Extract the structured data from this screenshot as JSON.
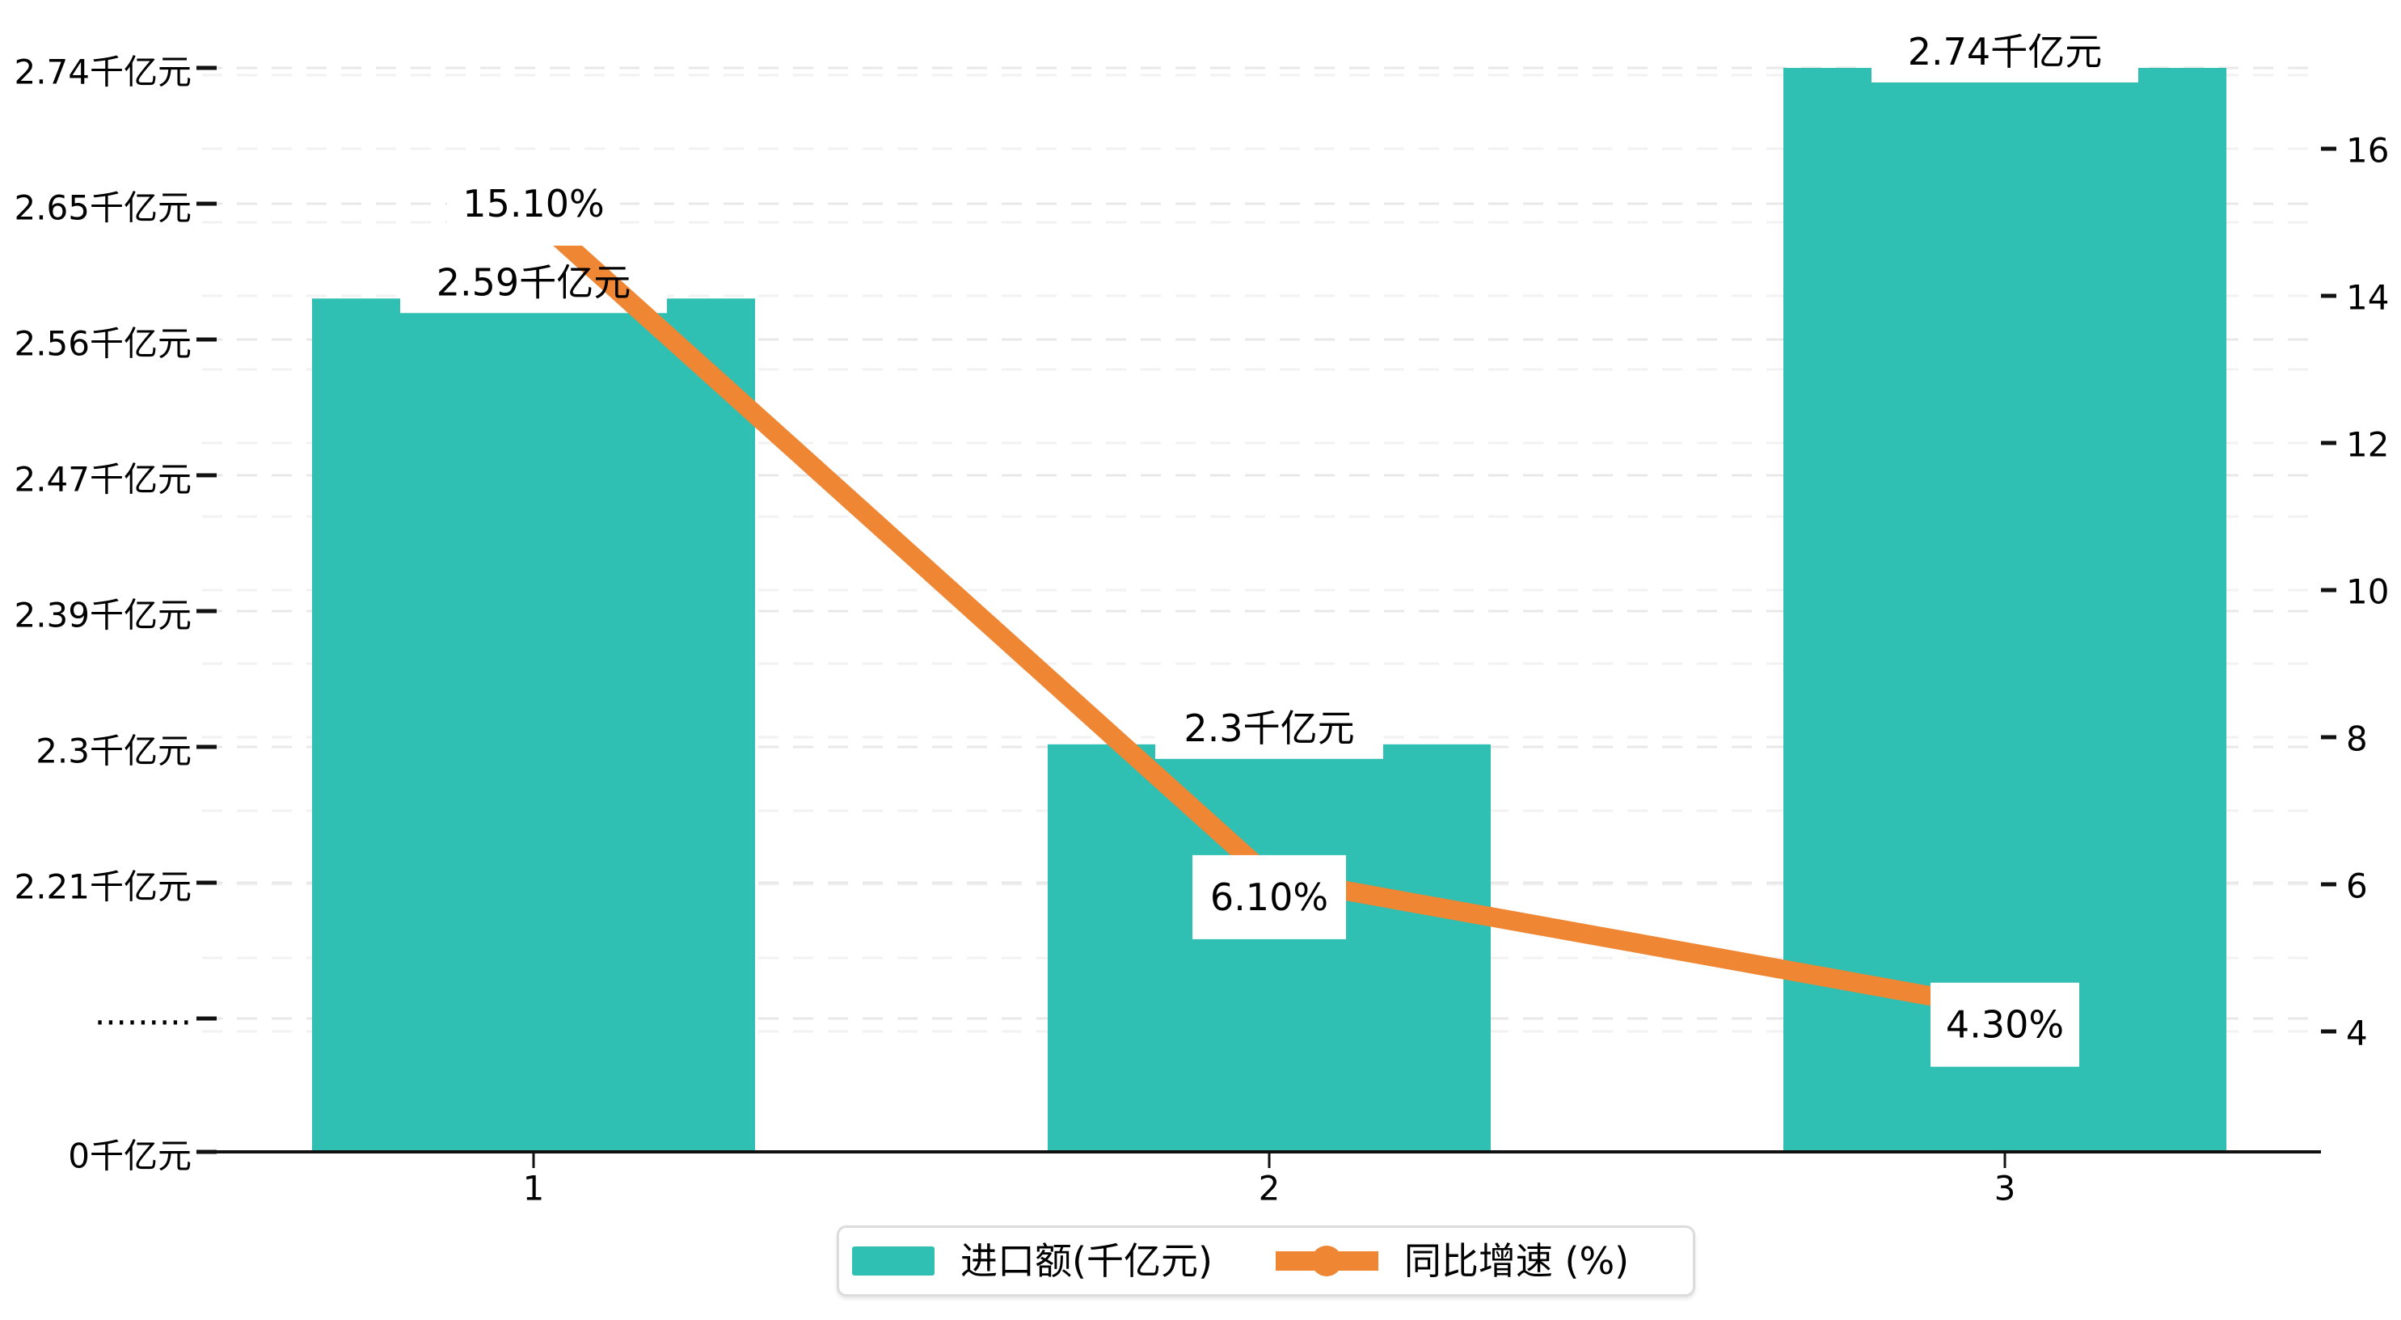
{
  "chart_data": {
    "type": "bar",
    "combo_types": [
      "bar",
      "line"
    ],
    "categories": [
      "1",
      "2",
      "3"
    ],
    "series": [
      {
        "name": "进口额(千亿元)",
        "type": "bar",
        "values": [
          2.59,
          2.3,
          2.74
        ],
        "data_labels": [
          "2.59千亿元",
          "2.3千亿元",
          "2.74千亿元"
        ],
        "color": "#2FBFB3"
      },
      {
        "name": "同比增速 (%)",
        "type": "line",
        "values": [
          15.1,
          6.1,
          4.3
        ],
        "data_labels": [
          "15.10%",
          "6.10%",
          "4.30%"
        ],
        "color": "#EE8633"
      }
    ],
    "title": "",
    "xlabel": "",
    "ylabel_left": "千亿元",
    "ylabel_right": "%",
    "left_axis_tick_labels": [
      "2.74千亿元",
      "2.65千亿元",
      "2.56千亿元",
      "2.47千亿元",
      "2.39千亿元",
      "2.3千亿元",
      "2.21千亿元",
      "·········",
      "0千亿元"
    ],
    "left_axis_broken": true,
    "right_axis_tick_labels": [
      "16",
      "14",
      "12",
      "10",
      "8",
      "6",
      "4"
    ],
    "right_axis_range": [
      4,
      16
    ],
    "grid": true,
    "legend_position": "bottom",
    "background_color": "#ffffff",
    "axis_color": "#111111",
    "gridline_color": "#e8e8e8"
  },
  "legend": {
    "items": [
      {
        "label": "进口额(千亿元)",
        "marker": "bar-swatch",
        "color": "#2FBFB3"
      },
      {
        "label": "同比增速 (%)",
        "marker": "line-with-dot",
        "color": "#EE8633"
      }
    ]
  }
}
